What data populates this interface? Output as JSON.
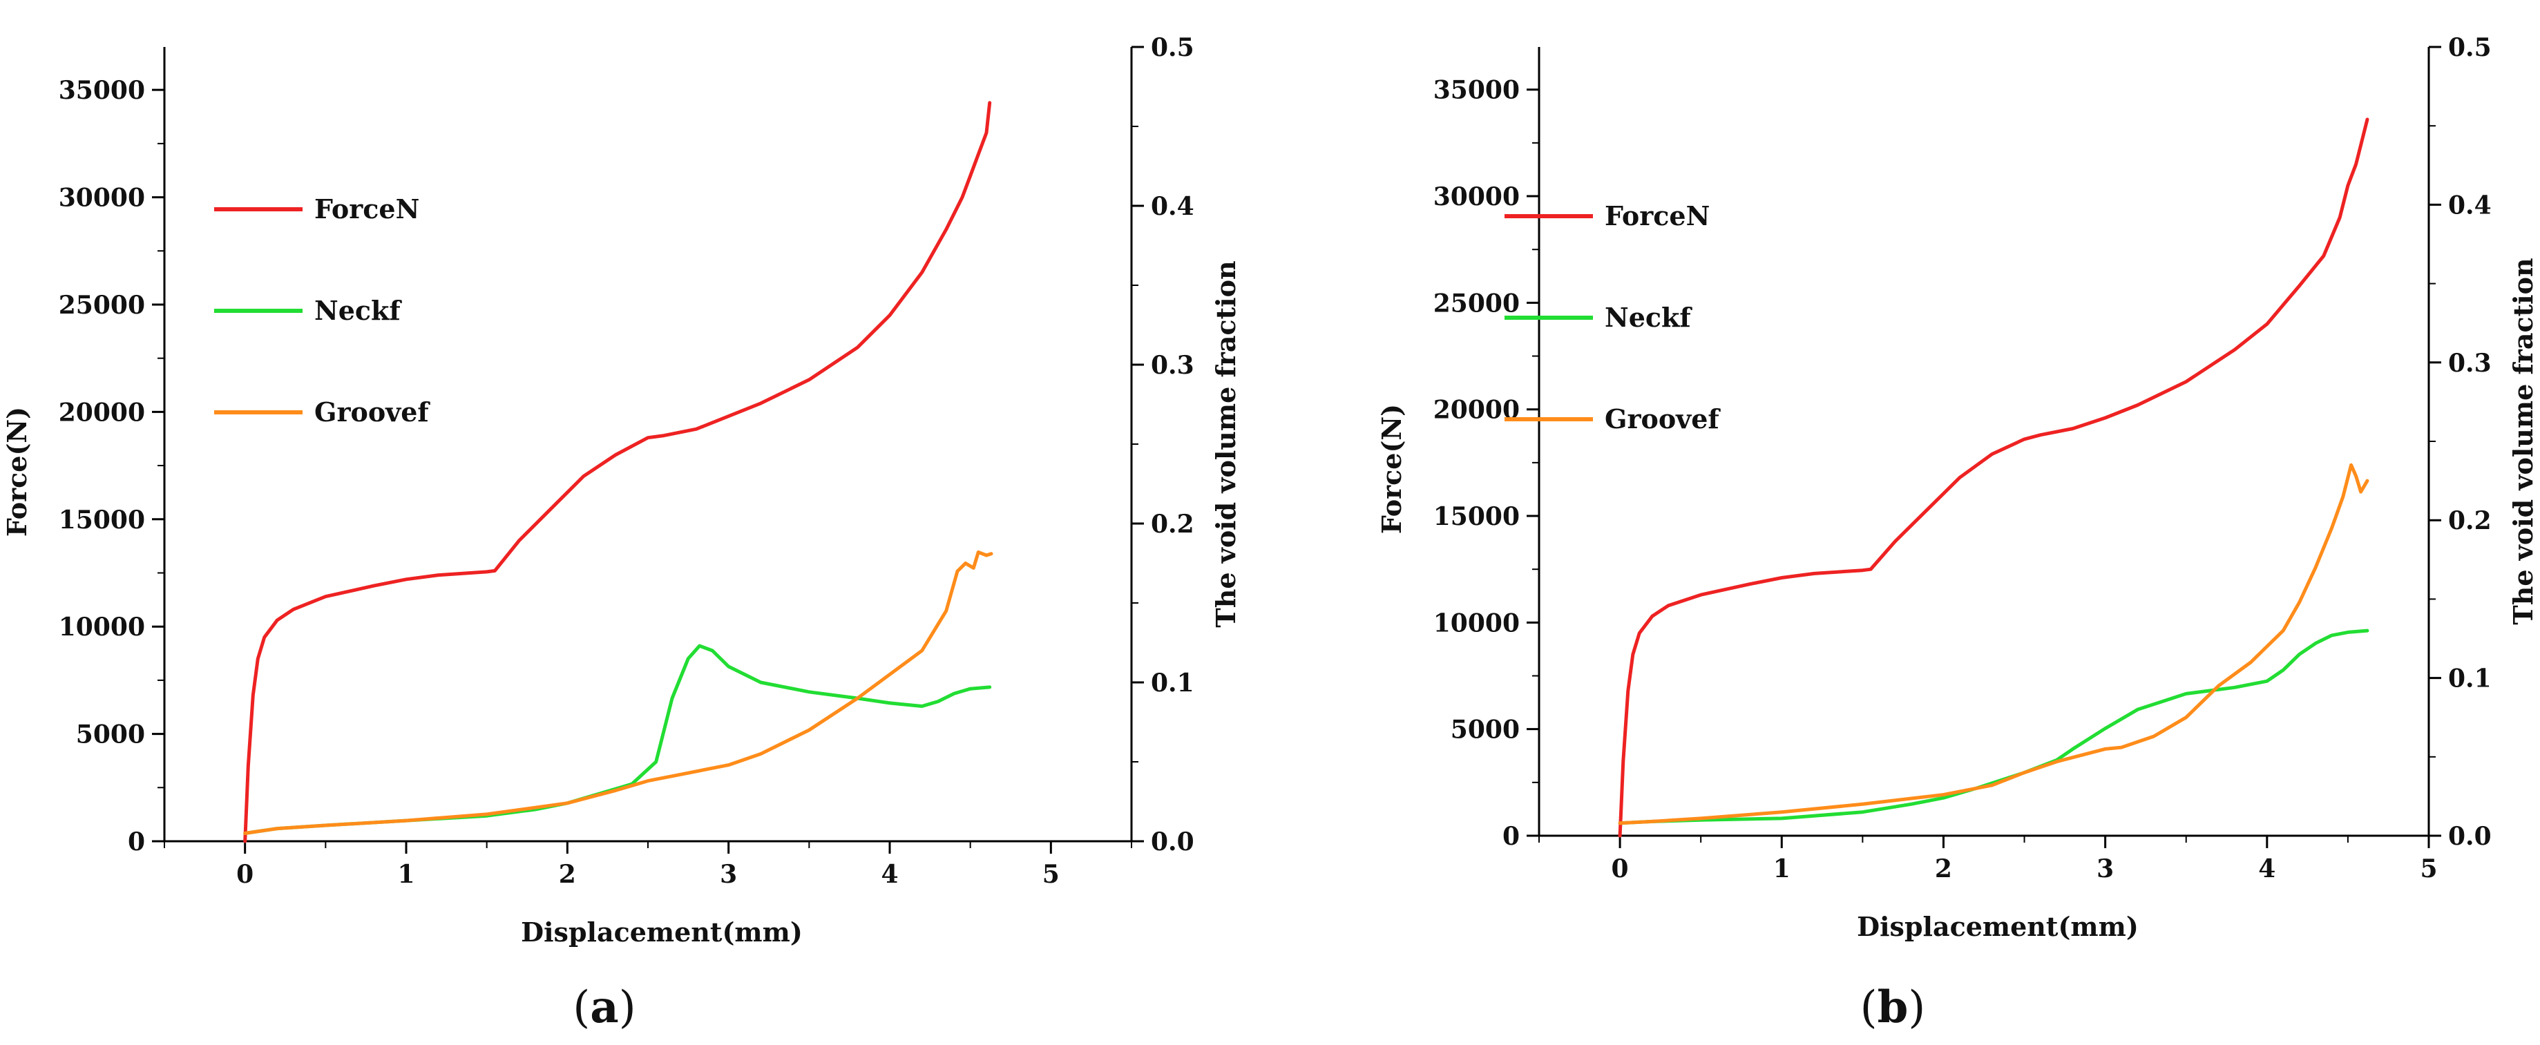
{
  "chart_data": [
    {
      "type": "line",
      "panel_label": "a",
      "xlabel": "Displacement(mm)",
      "ylabel": "Force(N)",
      "y2label": "The void volume fraction",
      "xlim": [
        -0.5,
        5.5
      ],
      "ylim": [
        0,
        37000
      ],
      "y2lim": [
        0,
        0.5
      ],
      "x_ticks": [
        0,
        1,
        2,
        3,
        4,
        5
      ],
      "y_ticks": [
        0,
        5000,
        10000,
        15000,
        20000,
        25000,
        30000,
        35000
      ],
      "y2_ticks": [
        0.0,
        0.1,
        0.2,
        0.3,
        0.4,
        0.5
      ],
      "x_tick_labels": [
        "0",
        "1",
        "2",
        "3",
        "4",
        "5"
      ],
      "y_tick_labels": [
        "0",
        "5000",
        "10000",
        "15000",
        "20000",
        "25000",
        "30000",
        "35000"
      ],
      "y2_tick_labels": [
        "0.0",
        "0.1",
        "0.2",
        "0.3",
        "0.4",
        "0.5"
      ],
      "legend_position": "upper-left",
      "series": [
        {
          "name": "ForceN",
          "axis": "left",
          "color": "#ee2222",
          "x": [
            0,
            0.02,
            0.05,
            0.08,
            0.12,
            0.2,
            0.3,
            0.5,
            0.8,
            1.0,
            1.2,
            1.5,
            1.55,
            1.7,
            1.9,
            2.1,
            2.3,
            2.5,
            2.6,
            2.8,
            3.0,
            3.2,
            3.5,
            3.8,
            4.0,
            4.2,
            4.35,
            4.45,
            4.5,
            4.55,
            4.6,
            4.62
          ],
          "values": [
            0,
            3500,
            6800,
            8500,
            9500,
            10300,
            10800,
            11400,
            11900,
            12200,
            12400,
            12550,
            12600,
            14000,
            15500,
            17000,
            18000,
            18800,
            18900,
            19200,
            19800,
            20400,
            21500,
            23000,
            24500,
            26500,
            28500,
            30000,
            31000,
            32000,
            33000,
            34400
          ]
        },
        {
          "name": "Neckf",
          "axis": "right",
          "color": "#22dd33",
          "x": [
            0,
            0.2,
            0.5,
            1.0,
            1.5,
            1.8,
            2.0,
            2.2,
            2.4,
            2.55,
            2.65,
            2.75,
            2.82,
            2.9,
            3.0,
            3.2,
            3.5,
            3.8,
            4.0,
            4.2,
            4.3,
            4.4,
            4.5,
            4.62
          ],
          "values": [
            0.005,
            0.008,
            0.01,
            0.013,
            0.016,
            0.02,
            0.024,
            0.03,
            0.036,
            0.05,
            0.09,
            0.115,
            0.123,
            0.12,
            0.11,
            0.1,
            0.094,
            0.09,
            0.087,
            0.085,
            0.088,
            0.093,
            0.096,
            0.097
          ]
        },
        {
          "name": "Groovef",
          "axis": "right",
          "color": "#ff8c1a",
          "x": [
            0,
            0.2,
            0.5,
            1.0,
            1.5,
            2.0,
            2.3,
            2.5,
            2.7,
            3.0,
            3.2,
            3.5,
            3.8,
            4.0,
            4.2,
            4.35,
            4.42,
            4.47,
            4.52,
            4.55,
            4.6,
            4.63
          ],
          "values": [
            0.005,
            0.008,
            0.01,
            0.013,
            0.017,
            0.024,
            0.032,
            0.038,
            0.042,
            0.048,
            0.055,
            0.07,
            0.09,
            0.105,
            0.12,
            0.145,
            0.17,
            0.175,
            0.172,
            0.182,
            0.18,
            0.181
          ]
        }
      ]
    },
    {
      "type": "line",
      "panel_label": "b",
      "xlabel": "Displacement(mm)",
      "ylabel": "Force(N)",
      "y2label": "The void volume fraction",
      "xlim": [
        -0.5,
        5.0
      ],
      "ylim": [
        0,
        37000
      ],
      "y2lim": [
        0,
        0.5
      ],
      "x_ticks": [
        0,
        1,
        2,
        3,
        4,
        5
      ],
      "y_ticks": [
        0,
        5000,
        10000,
        15000,
        20000,
        25000,
        30000,
        35000
      ],
      "y2_ticks": [
        0.0,
        0.1,
        0.2,
        0.3,
        0.4,
        0.5
      ],
      "x_tick_labels": [
        "0",
        "1",
        "2",
        "3",
        "4",
        "5"
      ],
      "y_tick_labels": [
        "0",
        "5000",
        "10000",
        "15000",
        "20000",
        "25000",
        "30000",
        "35000"
      ],
      "y2_tick_labels": [
        "0.0",
        "0.1",
        "0.2",
        "0.3",
        "0.4",
        "0.5"
      ],
      "legend_position": "upper-left",
      "series": [
        {
          "name": "ForceN",
          "axis": "left",
          "color": "#ee2222",
          "x": [
            0,
            0.02,
            0.05,
            0.08,
            0.12,
            0.2,
            0.3,
            0.5,
            0.8,
            1.0,
            1.2,
            1.5,
            1.55,
            1.7,
            1.9,
            2.1,
            2.3,
            2.5,
            2.6,
            2.8,
            3.0,
            3.2,
            3.5,
            3.8,
            4.0,
            4.2,
            4.35,
            4.45,
            4.5,
            4.55,
            4.6,
            4.62
          ],
          "values": [
            0,
            3500,
            6800,
            8500,
            9500,
            10300,
            10800,
            11300,
            11800,
            12100,
            12300,
            12450,
            12500,
            13800,
            15300,
            16800,
            17900,
            18600,
            18800,
            19100,
            19600,
            20200,
            21300,
            22800,
            24000,
            25800,
            27200,
            29000,
            30500,
            31500,
            33000,
            33600
          ]
        },
        {
          "name": "Neckf",
          "axis": "right",
          "color": "#22dd33",
          "x": [
            0,
            0.2,
            0.5,
            1.0,
            1.5,
            1.8,
            2.0,
            2.2,
            2.5,
            2.7,
            2.8,
            3.0,
            3.2,
            3.5,
            3.8,
            4.0,
            4.1,
            4.2,
            4.3,
            4.4,
            4.5,
            4.62
          ],
          "values": [
            0.008,
            0.009,
            0.01,
            0.011,
            0.015,
            0.02,
            0.024,
            0.03,
            0.04,
            0.048,
            0.055,
            0.068,
            0.08,
            0.09,
            0.094,
            0.098,
            0.105,
            0.115,
            0.122,
            0.127,
            0.129,
            0.13
          ]
        },
        {
          "name": "Groovef",
          "axis": "right",
          "color": "#ff8c1a",
          "x": [
            0,
            0.2,
            0.5,
            1.0,
            1.5,
            2.0,
            2.3,
            2.5,
            2.7,
            3.0,
            3.1,
            3.3,
            3.5,
            3.7,
            3.9,
            4.0,
            4.1,
            4.2,
            4.3,
            4.4,
            4.47,
            4.52,
            4.55,
            4.58,
            4.62
          ],
          "values": [
            0.008,
            0.009,
            0.011,
            0.015,
            0.02,
            0.026,
            0.032,
            0.04,
            0.047,
            0.055,
            0.056,
            0.063,
            0.075,
            0.095,
            0.11,
            0.12,
            0.13,
            0.148,
            0.17,
            0.195,
            0.215,
            0.235,
            0.228,
            0.218,
            0.225
          ]
        }
      ]
    }
  ]
}
